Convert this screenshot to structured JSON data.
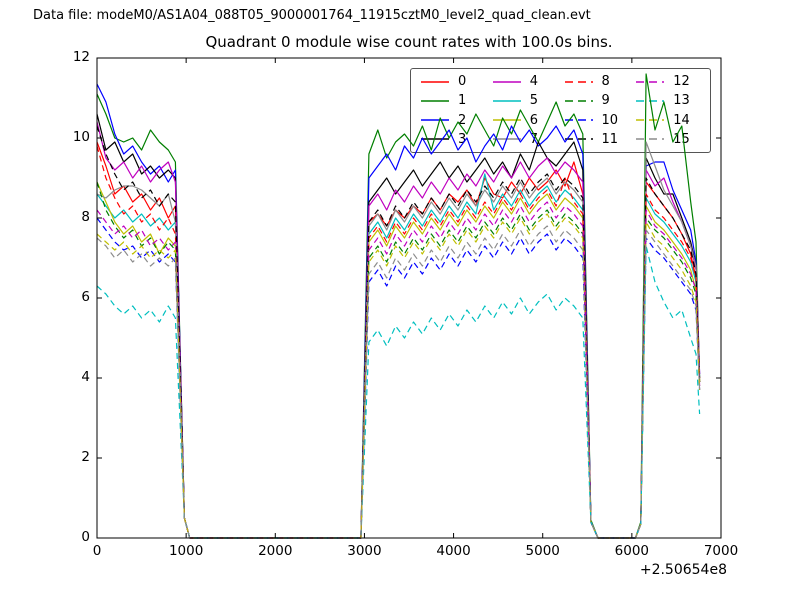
{
  "header": {
    "data_file": "Data file: modeM0/AS1A04_088T05_9000001764_11915cztM0_level2_quad_clean.evt"
  },
  "chart_data": {
    "type": "line",
    "title": "Quadrant 0 module wise count rates with 100.0s bins.",
    "xlabel": "",
    "ylabel": "",
    "xlim": [
      0,
      7000
    ],
    "ylim": [
      0,
      12
    ],
    "xticks": [
      0,
      1000,
      2000,
      3000,
      4000,
      5000,
      6000,
      7000
    ],
    "yticks": [
      0,
      2,
      4,
      6,
      8,
      10,
      12
    ],
    "x_offset_label": "+2.50654e8",
    "grid": false,
    "legend": {
      "columns": 4,
      "rows": 4,
      "position": "upper-right-inside",
      "fill_order": "column-major"
    },
    "x": [
      0,
      100,
      200,
      300,
      400,
      500,
      600,
      700,
      800,
      880,
      980,
      1040,
      2900,
      2960,
      3050,
      3150,
      3250,
      3350,
      3450,
      3550,
      3650,
      3750,
      3850,
      3950,
      4050,
      4150,
      4250,
      4350,
      4450,
      4550,
      4650,
      4750,
      4850,
      4950,
      5050,
      5150,
      5250,
      5350,
      5450,
      5540,
      5620,
      6040,
      6100,
      6160,
      6260,
      6360,
      6460,
      6560,
      6660,
      6720,
      6760
    ],
    "series": [
      {
        "label": "0",
        "color": "#ff0000",
        "style": "solid",
        "values": [
          9.9,
          9.3,
          8.6,
          8.8,
          8.4,
          8.6,
          8.2,
          8.5,
          8.0,
          8.3,
          0.5,
          0,
          0,
          0,
          7.9,
          8.1,
          7.8,
          8.2,
          8.0,
          8.3,
          8.1,
          8.5,
          8.2,
          8.6,
          8.4,
          8.7,
          8.3,
          9.0,
          8.6,
          8.5,
          8.9,
          8.6,
          9.0,
          8.7,
          8.9,
          9.2,
          8.8,
          9.4,
          8.6,
          0.4,
          0,
          0,
          0.35,
          8.9,
          8.6,
          8.3,
          8.0,
          7.6,
          7.1,
          6.5,
          3.9
        ]
      },
      {
        "label": "1",
        "color": "#007f00",
        "style": "solid",
        "values": [
          11.1,
          10.6,
          10.0,
          9.9,
          10.0,
          9.7,
          10.2,
          9.9,
          9.7,
          9.4,
          0.5,
          0,
          0,
          0,
          9.6,
          10.2,
          9.5,
          9.9,
          10.1,
          9.8,
          10.3,
          9.7,
          10.5,
          10.0,
          10.4,
          10.1,
          10.6,
          10.2,
          9.8,
          10.5,
          10.1,
          10.7,
          10.3,
          9.9,
          10.4,
          10.9,
          10.3,
          10.6,
          10.1,
          0.45,
          0,
          0,
          0.4,
          11.6,
          10.2,
          10.9,
          9.9,
          10.3,
          8.4,
          7.4,
          3.9
        ]
      },
      {
        "label": "2",
        "color": "#0000ff",
        "style": "solid",
        "values": [
          11.35,
          10.9,
          10.1,
          9.6,
          9.8,
          9.4,
          9.1,
          9.3,
          8.9,
          9.2,
          0.5,
          0,
          0,
          0,
          9.0,
          9.3,
          9.6,
          9.2,
          9.8,
          9.5,
          10.0,
          9.6,
          9.9,
          10.2,
          9.7,
          10.0,
          9.4,
          9.8,
          10.1,
          9.7,
          10.3,
          9.9,
          10.2,
          9.8,
          10.0,
          10.3,
          9.9,
          10.2,
          9.6,
          0.4,
          0,
          0,
          0.35,
          9.3,
          9.4,
          9.4,
          8.7,
          8.2,
          7.7,
          6.9,
          4.1
        ]
      },
      {
        "label": "3",
        "color": "#000000",
        "style": "solid",
        "values": [
          10.6,
          9.7,
          9.9,
          9.4,
          9.6,
          9.1,
          9.3,
          9.0,
          9.2,
          9.0,
          0.5,
          0,
          0,
          0,
          8.4,
          8.7,
          9.0,
          8.6,
          8.9,
          9.2,
          8.8,
          9.1,
          9.4,
          9.0,
          9.3,
          8.9,
          9.2,
          9.5,
          9.1,
          9.4,
          9.0,
          9.6,
          9.2,
          9.9,
          9.5,
          9.3,
          9.6,
          9.9,
          9.2,
          0.4,
          0,
          0,
          0.35,
          9.5,
          9.0,
          8.6,
          8.6,
          8.0,
          7.4,
          6.8,
          4.0
        ]
      },
      {
        "label": "4",
        "color": "#bf00bf",
        "style": "solid",
        "values": [
          10.4,
          9.5,
          9.2,
          9.4,
          9.0,
          9.3,
          8.9,
          9.2,
          9.4,
          8.9,
          0.5,
          0,
          0,
          0,
          8.3,
          8.6,
          8.2,
          8.7,
          8.4,
          8.8,
          8.5,
          8.9,
          8.6,
          9.0,
          8.7,
          9.1,
          8.8,
          9.2,
          8.9,
          9.3,
          9.0,
          9.4,
          9.0,
          9.3,
          9.5,
          9.1,
          9.4,
          9.2,
          8.9,
          0.4,
          0,
          0,
          0.35,
          9.2,
          8.8,
          9.0,
          8.4,
          7.9,
          7.3,
          6.7,
          4.1
        ]
      },
      {
        "label": "5",
        "color": "#00bfbf",
        "style": "solid",
        "values": [
          8.6,
          8.3,
          8.0,
          8.2,
          7.9,
          8.1,
          7.8,
          8.0,
          7.7,
          7.9,
          0.5,
          0,
          0,
          0,
          7.6,
          7.9,
          7.5,
          8.0,
          7.7,
          8.1,
          7.8,
          8.2,
          7.9,
          8.3,
          8.0,
          8.4,
          8.1,
          9.1,
          8.2,
          8.6,
          8.3,
          8.7,
          8.3,
          8.6,
          8.8,
          8.4,
          8.7,
          8.5,
          8.2,
          0.4,
          0,
          0,
          0.35,
          8.5,
          8.1,
          7.9,
          7.6,
          7.3,
          6.9,
          6.4,
          4.0
        ]
      },
      {
        "label": "6",
        "color": "#bfbf00",
        "style": "solid",
        "values": [
          8.9,
          8.4,
          7.9,
          7.6,
          7.8,
          7.4,
          7.6,
          7.1,
          7.5,
          7.3,
          0.5,
          0,
          0,
          0,
          7.4,
          7.7,
          7.3,
          7.8,
          7.5,
          7.9,
          7.6,
          8.0,
          7.7,
          8.1,
          7.8,
          8.2,
          7.9,
          8.3,
          8.0,
          8.4,
          8.1,
          8.5,
          8.1,
          8.4,
          8.6,
          8.2,
          8.5,
          8.3,
          8.0,
          0.4,
          0,
          0,
          0.35,
          8.3,
          7.9,
          7.7,
          7.4,
          7.1,
          6.7,
          6.2,
          3.9
        ]
      },
      {
        "label": "7",
        "color": "#8c8c8c",
        "style": "solid",
        "values": [
          8.6,
          8.5,
          8.7,
          8.8,
          8.8,
          8.7,
          8.5,
          8.3,
          8.6,
          7.9,
          0.5,
          0,
          0,
          0,
          7.8,
          8.1,
          7.7,
          8.2,
          7.9,
          8.3,
          8.0,
          8.4,
          8.1,
          8.5,
          8.2,
          8.6,
          8.3,
          8.7,
          8.4,
          8.8,
          8.5,
          8.9,
          8.5,
          8.8,
          9.0,
          8.6,
          8.9,
          8.7,
          8.4,
          0.4,
          0,
          0,
          0.35,
          9.9,
          9.3,
          8.7,
          8.3,
          7.9,
          7.3,
          6.8,
          4.0
        ]
      },
      {
        "label": "8",
        "color": "#ff0000",
        "style": "dashed",
        "values": [
          9.8,
          9.0,
          8.5,
          8.1,
          8.3,
          7.9,
          8.1,
          7.7,
          8.0,
          7.6,
          0.5,
          0,
          0,
          0,
          7.5,
          7.8,
          7.4,
          7.9,
          7.6,
          8.0,
          7.7,
          8.1,
          7.8,
          8.2,
          7.9,
          8.3,
          8.0,
          8.4,
          8.1,
          8.5,
          8.2,
          8.6,
          8.2,
          8.5,
          8.7,
          8.3,
          9.0,
          8.4,
          8.1,
          0.4,
          0,
          0,
          0.35,
          8.6,
          8.2,
          8.0,
          7.7,
          7.4,
          7.0,
          6.5,
          4.0
        ]
      },
      {
        "label": "9",
        "color": "#007f00",
        "style": "dashed",
        "values": [
          8.9,
          8.2,
          7.8,
          7.5,
          7.7,
          7.3,
          7.5,
          7.1,
          7.4,
          7.2,
          0.5,
          0,
          0,
          0,
          7.0,
          7.3,
          6.9,
          7.4,
          7.1,
          7.5,
          7.2,
          7.6,
          7.3,
          7.7,
          7.4,
          7.8,
          7.5,
          7.9,
          7.6,
          8.0,
          7.7,
          8.1,
          7.7,
          8.0,
          8.2,
          7.8,
          8.1,
          7.9,
          7.6,
          0.4,
          0,
          0,
          0.35,
          8.0,
          7.7,
          7.5,
          7.2,
          6.9,
          6.5,
          6.1,
          3.8
        ]
      },
      {
        "label": "10",
        "color": "#0000ff",
        "style": "dashed",
        "values": [
          8.0,
          7.7,
          7.4,
          7.2,
          7.3,
          7.0,
          7.2,
          6.9,
          7.1,
          6.9,
          0.5,
          0,
          0,
          0,
          6.4,
          6.7,
          6.3,
          6.8,
          6.5,
          6.9,
          6.6,
          7.0,
          6.7,
          7.1,
          6.8,
          7.2,
          6.9,
          7.3,
          7.0,
          7.4,
          7.1,
          7.5,
          7.1,
          7.4,
          7.6,
          7.2,
          7.5,
          7.3,
          7.0,
          0.4,
          0,
          0,
          0.35,
          7.5,
          7.2,
          7.0,
          6.7,
          6.4,
          6.1,
          5.7,
          3.7
        ]
      },
      {
        "label": "11",
        "color": "#000000",
        "style": "dashed",
        "values": [
          10.3,
          9.6,
          9.1,
          8.7,
          8.9,
          8.5,
          8.7,
          8.3,
          8.6,
          8.4,
          0.5,
          0,
          0,
          0,
          7.9,
          8.2,
          7.8,
          8.3,
          8.0,
          8.4,
          8.1,
          8.5,
          8.2,
          8.6,
          8.3,
          8.7,
          8.4,
          8.8,
          8.5,
          8.9,
          8.6,
          9.0,
          8.6,
          8.9,
          9.1,
          8.7,
          9.0,
          8.8,
          8.5,
          0.4,
          0,
          0,
          0.35,
          9.0,
          8.6,
          8.3,
          8.0,
          7.6,
          7.2,
          6.6,
          3.9
        ]
      },
      {
        "label": "12",
        "color": "#bf00bf",
        "style": "dashed",
        "values": [
          8.2,
          7.9,
          7.6,
          7.8,
          7.5,
          7.7,
          7.3,
          7.5,
          7.2,
          7.4,
          0.5,
          0,
          0,
          0,
          7.2,
          7.5,
          7.1,
          7.6,
          7.3,
          7.7,
          7.4,
          7.8,
          7.5,
          7.9,
          7.6,
          8.0,
          7.7,
          8.1,
          7.8,
          8.2,
          7.9,
          8.3,
          7.9,
          8.2,
          8.4,
          8.0,
          8.3,
          8.1,
          7.8,
          0.4,
          0,
          0,
          0.35,
          8.2,
          7.8,
          7.6,
          7.3,
          7.0,
          6.6,
          6.2,
          3.8
        ]
      },
      {
        "label": "13",
        "color": "#00bfbf",
        "style": "dashed",
        "values": [
          6.3,
          6.1,
          5.8,
          5.6,
          5.8,
          5.5,
          5.7,
          5.4,
          5.8,
          5.5,
          0.5,
          0,
          0,
          0,
          4.9,
          5.2,
          4.8,
          5.3,
          5.0,
          5.4,
          5.1,
          5.5,
          5.2,
          5.6,
          5.3,
          5.7,
          5.4,
          5.8,
          5.5,
          5.9,
          5.6,
          6.0,
          5.6,
          5.9,
          6.1,
          5.7,
          6.0,
          5.8,
          5.5,
          0.4,
          0,
          0,
          0.35,
          7.3,
          6.4,
          5.9,
          5.5,
          5.7,
          5.0,
          4.6,
          3.1
        ]
      },
      {
        "label": "14",
        "color": "#bfbf00",
        "style": "dashed",
        "values": [
          7.6,
          7.4,
          7.2,
          7.4,
          7.1,
          7.3,
          7.0,
          7.2,
          7.0,
          7.2,
          0.5,
          0,
          0,
          0,
          6.9,
          7.2,
          6.8,
          7.3,
          7.0,
          7.4,
          7.1,
          7.5,
          7.2,
          7.6,
          7.3,
          7.7,
          7.4,
          7.8,
          7.5,
          7.9,
          7.6,
          8.0,
          7.6,
          7.9,
          8.1,
          7.7,
          8.0,
          7.8,
          7.5,
          0.4,
          0,
          0,
          0.35,
          7.9,
          7.5,
          7.3,
          7.0,
          6.7,
          6.3,
          5.9,
          3.7
        ]
      },
      {
        "label": "15",
        "color": "#8c8c8c",
        "style": "dashed",
        "values": [
          7.5,
          7.3,
          7.0,
          7.2,
          6.9,
          7.1,
          6.8,
          7.0,
          6.8,
          7.0,
          0.5,
          0,
          0,
          0,
          6.6,
          6.9,
          6.5,
          7.0,
          6.7,
          7.1,
          6.8,
          7.2,
          6.9,
          7.3,
          7.0,
          7.4,
          7.1,
          7.5,
          7.2,
          7.6,
          7.3,
          7.7,
          7.3,
          7.6,
          7.8,
          7.4,
          7.7,
          7.5,
          7.2,
          0.4,
          0,
          0,
          0.35,
          7.7,
          7.4,
          7.1,
          6.8,
          6.5,
          6.2,
          5.8,
          3.7
        ]
      }
    ],
    "axis_color": "#000000"
  }
}
